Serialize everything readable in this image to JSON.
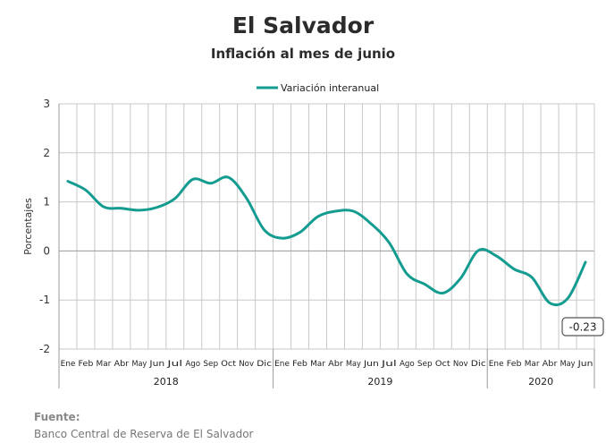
{
  "header": {
    "title": "El Salvador",
    "subtitle": "Inflación al mes de junio"
  },
  "source": {
    "label": "Fuente:",
    "text": "Banco Central de Reserva de El Salvador"
  },
  "colors": {
    "series": "#149c91",
    "grid": "#c8c8c8",
    "zero": "#999999"
  },
  "chart_data": {
    "type": "line",
    "ylabel": "Porcentajes",
    "ylim": [
      -2,
      3
    ],
    "yticks": [
      3,
      2,
      1,
      0,
      -1,
      -2
    ],
    "grid": true,
    "legend": "top-center",
    "years": [
      {
        "label": "2018",
        "count": 12
      },
      {
        "label": "2019",
        "count": 12
      },
      {
        "label": "2020",
        "count": 6
      }
    ],
    "categories": [
      "Ene",
      "Feb",
      "Mar",
      "Abr",
      "May",
      "Jun",
      "Jul",
      "Ago",
      "Sep",
      "Oct",
      "Nov",
      "Dic",
      "Ene",
      "Feb",
      "Mar",
      "Abr",
      "May",
      "Jun",
      "Jul",
      "Ago",
      "Sep",
      "Oct",
      "Nov",
      "Dic",
      "Ene",
      "Feb",
      "Mar",
      "Abr",
      "May",
      "Jun"
    ],
    "series": [
      {
        "name": "Variación interanual",
        "values": [
          1.42,
          1.24,
          0.9,
          0.87,
          0.83,
          0.89,
          1.07,
          1.46,
          1.38,
          1.5,
          1.08,
          0.43,
          0.26,
          0.38,
          0.7,
          0.81,
          0.81,
          0.55,
          0.17,
          -0.47,
          -0.68,
          -0.86,
          -0.56,
          0.01,
          -0.1,
          -0.37,
          -0.54,
          -1.06,
          -0.97,
          -0.23
        ]
      }
    ],
    "annotation": {
      "index": 29,
      "text": "-0.23"
    }
  }
}
